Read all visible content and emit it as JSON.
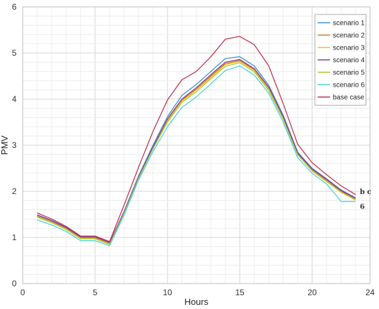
{
  "chart_data": {
    "type": "line",
    "xlabel": "Hours",
    "ylabel": "PMV",
    "xlim": [
      0,
      24
    ],
    "ylim": [
      0,
      6
    ],
    "xticks": [
      0,
      5,
      10,
      15,
      20,
      24
    ],
    "yticks": [
      0,
      1,
      2,
      3,
      4,
      5,
      6
    ],
    "x_minor_step": 1,
    "y_minor_step": 0.2,
    "grid": true,
    "legend_position": "top-right",
    "x": [
      1,
      2,
      3,
      4,
      5,
      6,
      7,
      8,
      9,
      10,
      11,
      12,
      13,
      14,
      15,
      16,
      17,
      18,
      19,
      20,
      21,
      22,
      23
    ],
    "series": [
      {
        "name": "scenario 1",
        "color": "#3f8fd0",
        "values": [
          1.48,
          1.36,
          1.21,
          1.0,
          1.0,
          0.88,
          1.56,
          2.33,
          3.0,
          3.62,
          4.08,
          4.32,
          4.6,
          4.88,
          4.92,
          4.72,
          4.3,
          3.65,
          2.85,
          2.5,
          2.27,
          2.03,
          1.86
        ]
      },
      {
        "name": "scenario 2",
        "color": "#d9782a",
        "values": [
          1.46,
          1.34,
          1.19,
          0.99,
          0.99,
          0.87,
          1.54,
          2.3,
          2.95,
          3.55,
          3.98,
          4.22,
          4.5,
          4.77,
          4.84,
          4.64,
          4.24,
          3.6,
          2.82,
          2.47,
          2.24,
          2.0,
          1.84
        ]
      },
      {
        "name": "scenario 3",
        "color": "#e6c21c",
        "values": [
          1.45,
          1.33,
          1.18,
          0.98,
          0.98,
          0.86,
          1.53,
          2.29,
          2.94,
          3.53,
          3.96,
          4.2,
          4.47,
          4.75,
          4.82,
          4.62,
          4.22,
          3.58,
          2.8,
          2.45,
          2.22,
          1.98,
          1.82
        ]
      },
      {
        "name": "scenario 4",
        "color": "#8a3a9a",
        "values": [
          1.49,
          1.37,
          1.22,
          1.01,
          1.01,
          0.89,
          1.55,
          2.31,
          2.96,
          3.57,
          4.0,
          4.25,
          4.53,
          4.8,
          4.86,
          4.66,
          4.26,
          3.62,
          2.83,
          2.48,
          2.26,
          2.02,
          1.85
        ]
      },
      {
        "name": "scenario 5",
        "color": "#a6cc33",
        "values": [
          1.44,
          1.32,
          1.17,
          0.97,
          0.97,
          0.85,
          1.52,
          2.28,
          2.92,
          3.5,
          3.93,
          4.16,
          4.44,
          4.71,
          4.79,
          4.59,
          4.19,
          3.56,
          2.79,
          2.44,
          2.21,
          1.98,
          1.81
        ]
      },
      {
        "name": "scenario 6",
        "color": "#4fd3de",
        "values": [
          1.38,
          1.27,
          1.13,
          0.93,
          0.93,
          0.82,
          1.48,
          2.24,
          2.86,
          3.4,
          3.82,
          4.05,
          4.33,
          4.62,
          4.72,
          4.52,
          4.13,
          3.5,
          2.73,
          2.39,
          2.16,
          1.78,
          1.78
        ]
      },
      {
        "name": "base case",
        "color": "#c0334f",
        "values": [
          1.53,
          1.4,
          1.24,
          1.03,
          1.03,
          0.91,
          1.7,
          2.52,
          3.3,
          3.98,
          4.42,
          4.6,
          4.92,
          5.3,
          5.36,
          5.18,
          4.72,
          3.9,
          3.02,
          2.62,
          2.36,
          2.12,
          1.93
        ]
      }
    ],
    "annotations": [
      {
        "text": "b c",
        "x": 23.3,
        "y": 2.0
      },
      {
        "text": "6",
        "x": 23.3,
        "y": 1.68
      }
    ]
  }
}
